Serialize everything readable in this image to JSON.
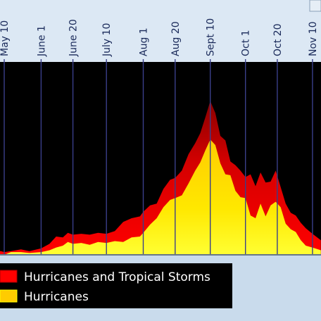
{
  "chart_data": {
    "type": "area",
    "title": "",
    "xlabel": "",
    "ylabel": "",
    "tick_labels": [
      "May 10",
      "June 1",
      "June 20",
      "July 10",
      "Aug 1",
      "Aug 20",
      "Sept 10",
      "Oct 1",
      "Oct 20",
      "Nov 10"
    ],
    "tick_dates": [
      "05-10",
      "06-01",
      "06-20",
      "07-10",
      "08-01",
      "08-20",
      "09-10",
      "10-01",
      "10-20",
      "11-10"
    ],
    "grid": true,
    "legend_position": "bottom",
    "background_color": "#000000",
    "series": [
      {
        "name": "Hurricanes and Tropical Storms",
        "color": "#ff0000",
        "x": [
          "05-01",
          "05-08",
          "05-10",
          "05-14",
          "05-20",
          "05-25",
          "06-01",
          "06-06",
          "06-10",
          "06-14",
          "06-17",
          "06-20",
          "06-25",
          "06-30",
          "07-05",
          "07-10",
          "07-15",
          "07-20",
          "07-25",
          "07-30",
          "08-01",
          "08-05",
          "08-09",
          "08-13",
          "08-17",
          "08-20",
          "08-24",
          "08-28",
          "09-01",
          "09-04",
          "09-07",
          "09-10",
          "09-13",
          "09-16",
          "09-19",
          "09-22",
          "09-25",
          "09-28",
          "10-01",
          "10-04",
          "10-07",
          "10-10",
          "10-13",
          "10-16",
          "10-19",
          "10-22",
          "10-25",
          "10-28",
          "10-31",
          "11-03",
          "11-06",
          "11-10",
          "11-15"
        ],
        "values": [
          3,
          4,
          3,
          4,
          6,
          4,
          7,
          12,
          20,
          19,
          24,
          22,
          23,
          22,
          24,
          23,
          26,
          36,
          40,
          42,
          47,
          54,
          56,
          72,
          82,
          84,
          92,
          110,
          122,
          133,
          150,
          168,
          155,
          130,
          125,
          102,
          98,
          92,
          85,
          88,
          75,
          90,
          79,
          80,
          92,
          74,
          56,
          46,
          43,
          35,
          29,
          23,
          16
        ]
      },
      {
        "name": "Hurricanes",
        "color": "#ffcc00",
        "x": [
          "05-01",
          "05-08",
          "05-10",
          "05-14",
          "05-20",
          "05-25",
          "06-01",
          "06-06",
          "06-10",
          "06-14",
          "06-17",
          "06-20",
          "06-25",
          "06-30",
          "07-05",
          "07-10",
          "07-15",
          "07-20",
          "07-25",
          "07-30",
          "08-01",
          "08-05",
          "08-09",
          "08-13",
          "08-17",
          "08-20",
          "08-24",
          "08-28",
          "09-01",
          "09-04",
          "09-07",
          "09-10",
          "09-13",
          "09-16",
          "09-19",
          "09-22",
          "09-25",
          "09-28",
          "10-01",
          "10-04",
          "10-07",
          "10-10",
          "10-13",
          "10-16",
          "10-19",
          "10-22",
          "10-25",
          "10-28",
          "10-31",
          "11-03",
          "11-06",
          "11-10",
          "11-15"
        ],
        "values": [
          0,
          0,
          0,
          3,
          3,
          2,
          3,
          5,
          8,
          10,
          14,
          12,
          13,
          11,
          14,
          13,
          15,
          14,
          19,
          20,
          24,
          33,
          40,
          52,
          60,
          62,
          65,
          78,
          92,
          101,
          114,
          126,
          120,
          100,
          88,
          87,
          70,
          63,
          62,
          43,
          40,
          56,
          42,
          54,
          58,
          52,
          34,
          28,
          25,
          16,
          10,
          8,
          5
        ]
      }
    ]
  }
}
